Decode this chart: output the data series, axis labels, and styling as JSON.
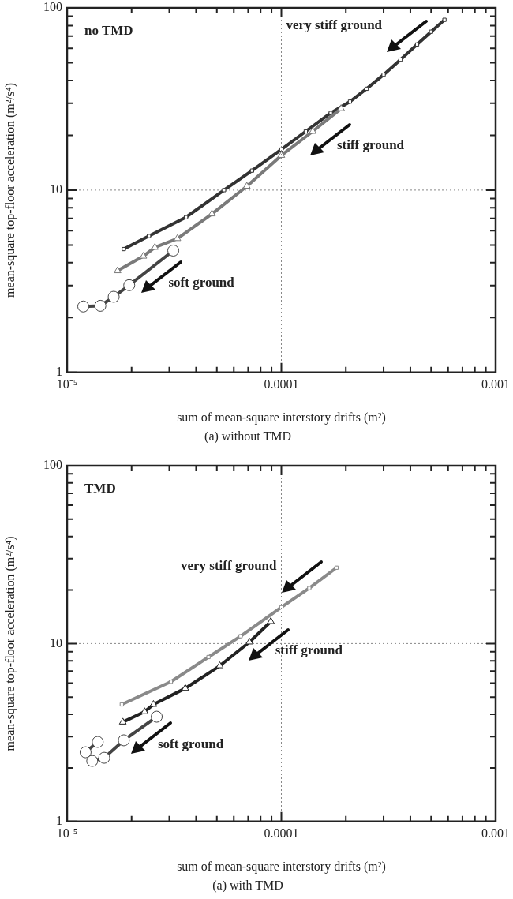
{
  "chart_data": [
    {
      "type": "line",
      "title": "(a) without TMD",
      "xlabel": "sum of mean-square interstory drifts (m²)",
      "ylabel": "mean-square top-floor acceleration (m²/s⁴)",
      "log": "xy",
      "grid": true,
      "xlim": [
        1e-05,
        0.001
      ],
      "ylim": [
        1,
        100
      ],
      "xticks": [
        {
          "value": 1e-05,
          "label": "10⁻⁵"
        },
        {
          "value": 2e-05,
          "label": null
        },
        {
          "value": 3e-05,
          "label": null
        },
        {
          "value": 4e-05,
          "label": null
        },
        {
          "value": 5e-05,
          "label": null
        },
        {
          "value": 6e-05,
          "label": null
        },
        {
          "value": 7e-05,
          "label": null
        },
        {
          "value": 8e-05,
          "label": null
        },
        {
          "value": 9e-05,
          "label": null
        },
        {
          "value": 0.0001,
          "label": "0.0001"
        },
        {
          "value": 0.0002,
          "label": null
        },
        {
          "value": 0.0003,
          "label": null
        },
        {
          "value": 0.0004,
          "label": null
        },
        {
          "value": 0.0005,
          "label": null
        },
        {
          "value": 0.0006,
          "label": null
        },
        {
          "value": 0.0007,
          "label": null
        },
        {
          "value": 0.0008,
          "label": null
        },
        {
          "value": 0.0009,
          "label": null
        },
        {
          "value": 0.001,
          "label": "0.001"
        }
      ],
      "yticks": [
        1,
        {
          "value": 2,
          "label": null
        },
        {
          "value": 3,
          "label": null
        },
        {
          "value": 4,
          "label": null
        },
        {
          "value": 5,
          "label": null
        },
        {
          "value": 6,
          "label": null
        },
        {
          "value": 7,
          "label": null
        },
        {
          "value": 8,
          "label": null
        },
        {
          "value": 9,
          "label": null
        },
        10,
        {
          "value": 20,
          "label": null
        },
        {
          "value": 30,
          "label": null
        },
        {
          "value": 40,
          "label": null
        },
        {
          "value": 50,
          "label": null
        },
        {
          "value": 60,
          "label": null
        },
        {
          "value": 70,
          "label": null
        },
        {
          "value": 80,
          "label": null
        },
        {
          "value": 90,
          "label": null
        },
        100
      ],
      "series": [
        {
          "color": "#333333",
          "marker": "square",
          "x": [
            1.84e-05,
            2.41e-05,
            3.59e-05,
            5.4e-05,
            7.3e-05,
            0.0001,
            0.00013,
            0.00017,
            0.000209,
            0.00025,
            0.0003,
            0.00036,
            0.00043,
            0.0005,
            0.000577
          ],
          "values": [
            4.75,
            5.6,
            7.1,
            10,
            12.8,
            16.7,
            21,
            26.5,
            30.6,
            36,
            43,
            52,
            63,
            74,
            86
          ]
        },
        {
          "color": "#7a7a7a",
          "marker": "triangle",
          "x": [
            1.72e-05,
            2.27e-05,
            2.57e-05,
            3.27e-05,
            4.74e-05,
            6.9e-05,
            0.0001,
            0.00014,
            0.00019
          ],
          "values": [
            3.61,
            4.34,
            4.85,
            5.42,
            7.4,
            10.5,
            15.5,
            21,
            28
          ]
        },
        {
          "color": "#444444",
          "marker": "circle",
          "x": [
            1.19e-05,
            1.43e-05,
            1.65e-05,
            1.95e-05,
            3.13e-05
          ],
          "values": [
            2.3,
            2.32,
            2.6,
            3.01,
            4.66
          ]
        }
      ],
      "annotations": [
        "no TMD",
        "very stiff ground",
        "stiff ground",
        "soft ground"
      ]
    },
    {
      "type": "line",
      "title": "(a) with TMD",
      "xlabel": "sum of mean-square interstory drifts (m²)",
      "ylabel": "mean-square top-floor acceleration (m²/s⁴)",
      "log": "xy",
      "grid": true,
      "xlim": [
        1e-05,
        0.001
      ],
      "ylim": [
        1,
        100
      ],
      "xticks": [
        {
          "value": 1e-05,
          "label": "10⁻⁵"
        },
        {
          "value": 2e-05,
          "label": null
        },
        {
          "value": 3e-05,
          "label": null
        },
        {
          "value": 4e-05,
          "label": null
        },
        {
          "value": 5e-05,
          "label": null
        },
        {
          "value": 6e-05,
          "label": null
        },
        {
          "value": 7e-05,
          "label": null
        },
        {
          "value": 8e-05,
          "label": null
        },
        {
          "value": 9e-05,
          "label": null
        },
        {
          "value": 0.0001,
          "label": "0.0001"
        },
        {
          "value": 0.0002,
          "label": null
        },
        {
          "value": 0.0003,
          "label": null
        },
        {
          "value": 0.0004,
          "label": null
        },
        {
          "value": 0.0005,
          "label": null
        },
        {
          "value": 0.0006,
          "label": null
        },
        {
          "value": 0.0007,
          "label": null
        },
        {
          "value": 0.0008,
          "label": null
        },
        {
          "value": 0.0009,
          "label": null
        },
        {
          "value": 0.001,
          "label": "0.001"
        }
      ],
      "yticks": [
        1,
        {
          "value": 2,
          "label": null
        },
        {
          "value": 3,
          "label": null
        },
        {
          "value": 4,
          "label": null
        },
        {
          "value": 5,
          "label": null
        },
        {
          "value": 6,
          "label": null
        },
        {
          "value": 7,
          "label": null
        },
        {
          "value": 8,
          "label": null
        },
        {
          "value": 9,
          "label": null
        },
        10,
        {
          "value": 20,
          "label": null
        },
        {
          "value": 30,
          "label": null
        },
        {
          "value": 40,
          "label": null
        },
        {
          "value": 50,
          "label": null
        },
        {
          "value": 60,
          "label": null
        },
        {
          "value": 70,
          "label": null
        },
        {
          "value": 80,
          "label": null
        },
        {
          "value": 90,
          "label": null
        },
        100
      ],
      "series": [
        {
          "color": "#8a8a8a",
          "marker": "square",
          "x": [
            1.8e-05,
            3.05e-05,
            4.57e-05,
            6.45e-05,
            0.0001,
            0.000135,
            0.000181
          ],
          "values": [
            4.55,
            6.1,
            8.4,
            11,
            16,
            20.5,
            26.7
          ]
        },
        {
          "color": "#222222",
          "marker": "triangle",
          "x": [
            1.82e-05,
            2.3e-05,
            2.53e-05,
            3.56e-05,
            5.16e-05,
            7.1e-05,
            8.93e-05
          ],
          "values": [
            3.62,
            4.14,
            4.55,
            5.6,
            7.5,
            10.2,
            13.3
          ]
        },
        {
          "color": "#444444",
          "marker": "circle",
          "x": [
            1.39e-05,
            1.22e-05,
            1.31e-05,
            1.49e-05,
            1.84e-05,
            2.62e-05
          ],
          "values": [
            2.8,
            2.45,
            2.19,
            2.28,
            2.86,
            3.88
          ]
        }
      ],
      "annotations": [
        "TMD",
        "very stiff ground",
        "stiff ground",
        "soft ground"
      ]
    }
  ]
}
